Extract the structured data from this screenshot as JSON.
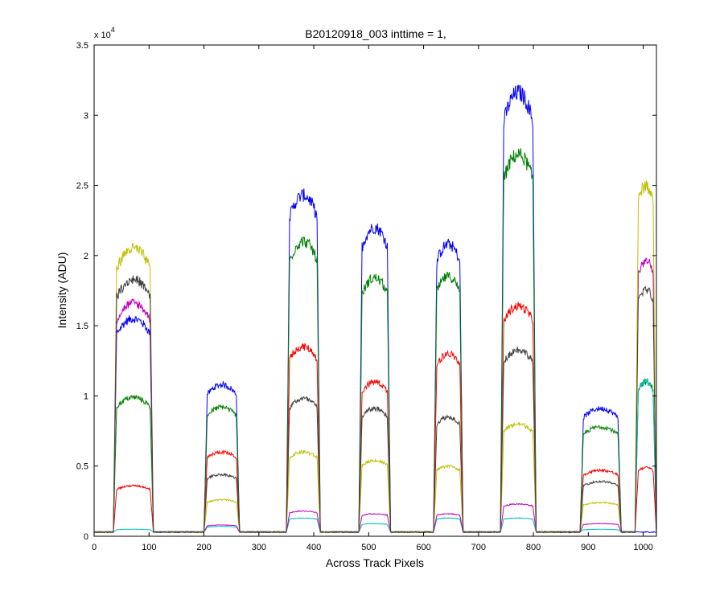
{
  "chart_data": {
    "type": "line",
    "title": "B20120918_003 inttime = 1,",
    "xlabel": "Across Track Pixels",
    "ylabel": "Intensity (ADU)",
    "y_exponent_label": "x 10",
    "y_exponent_power": "4",
    "xlim": [
      0,
      1024
    ],
    "ylim": [
      0,
      35000
    ],
    "xticks": [
      0,
      100,
      200,
      300,
      400,
      500,
      600,
      700,
      800,
      900,
      1000
    ],
    "xtick_labels": [
      "0",
      "100",
      "200",
      "300",
      "400",
      "500",
      "600",
      "700",
      "800",
      "900",
      "1000"
    ],
    "yticks": [
      0,
      5000,
      10000,
      15000,
      20000,
      25000,
      30000,
      35000
    ],
    "ytick_labels": [
      "0",
      "0.5",
      "1",
      "1.5",
      "2",
      "2.5",
      "3",
      "3.5"
    ],
    "grid": false,
    "baseline": 300,
    "bands": [
      {
        "start": 35,
        "end": 108
      },
      {
        "start": 200,
        "end": 265
      },
      {
        "start": 350,
        "end": 412
      },
      {
        "start": 482,
        "end": 540
      },
      {
        "start": 618,
        "end": 672
      },
      {
        "start": 740,
        "end": 805
      },
      {
        "start": 885,
        "end": 960
      },
      {
        "start": 985,
        "end": 1024
      }
    ],
    "series": [
      {
        "color": "#0000ff",
        "levels": [
          15500,
          10800,
          24300,
          22000,
          20800,
          31600,
          9100,
          0
        ]
      },
      {
        "color": "#008000",
        "levels": [
          9900,
          9200,
          21000,
          18400,
          18500,
          27200,
          7800,
          11000
        ]
      },
      {
        "color": "#ff0000",
        "levels": [
          3600,
          6000,
          13500,
          11000,
          13000,
          16400,
          4700,
          4900
        ]
      },
      {
        "color": "#00bfbf",
        "levels": [
          500,
          700,
          1300,
          900,
          1300,
          1300,
          500,
          11000
        ]
      },
      {
        "color": "#bf00bf",
        "levels": [
          16600,
          800,
          1800,
          1600,
          1600,
          2300,
          900,
          19600
        ]
      },
      {
        "color": "#bfbf00",
        "levels": [
          20500,
          2600,
          6000,
          5400,
          5000,
          8000,
          2400,
          25000
        ]
      },
      {
        "color": "#404040",
        "levels": [
          18300,
          4400,
          9800,
          9100,
          8500,
          13300,
          3900,
          17600
        ]
      }
    ]
  }
}
